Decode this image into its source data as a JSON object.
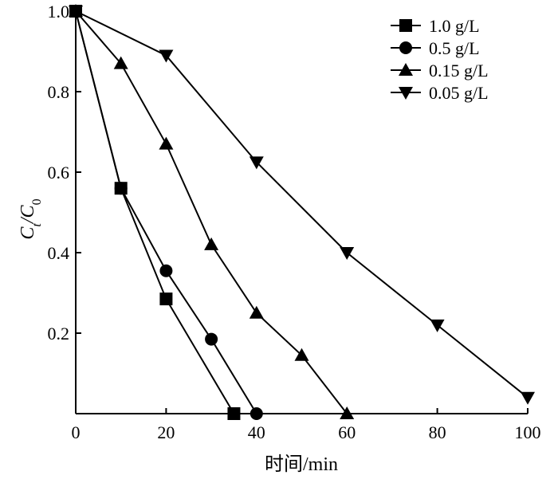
{
  "chart_data": {
    "type": "line",
    "xlabel": "时间/min",
    "ylabel": {
      "main": "C",
      "sub1": "t",
      "sep": "/C",
      "sub2": "0"
    },
    "xlim": [
      0,
      100
    ],
    "ylim": [
      0,
      1.0
    ],
    "x_ticks": [
      0,
      20,
      40,
      60,
      80,
      100
    ],
    "y_ticks": [
      0.2,
      0.4,
      0.6,
      0.8,
      1.0
    ],
    "x_tick_labels": [
      "0",
      "20",
      "40",
      "60",
      "80",
      "100"
    ],
    "y_tick_labels": [
      "0.2",
      "0.4",
      "0.6",
      "0.8",
      "1.0"
    ],
    "grid": false,
    "legend_position": "top-right",
    "series": [
      {
        "name": "1.0 g/L",
        "marker": "square",
        "x": [
          0,
          10,
          20,
          35
        ],
        "y": [
          1.0,
          0.56,
          0.285,
          0.0
        ]
      },
      {
        "name": "0.5 g/L",
        "marker": "circle",
        "x": [
          0,
          10,
          20,
          30,
          40
        ],
        "y": [
          1.0,
          0.56,
          0.355,
          0.185,
          0.0
        ]
      },
      {
        "name": "0.15 g/L",
        "marker": "triangle-up",
        "x": [
          0,
          10,
          20,
          30,
          40,
          50,
          60
        ],
        "y": [
          1.0,
          0.87,
          0.67,
          0.42,
          0.25,
          0.145,
          0.0
        ]
      },
      {
        "name": "0.05 g/L",
        "marker": "triangle-down",
        "x": [
          0,
          20,
          40,
          60,
          80,
          100
        ],
        "y": [
          1.0,
          0.89,
          0.625,
          0.4,
          0.22,
          0.04
        ]
      }
    ]
  }
}
